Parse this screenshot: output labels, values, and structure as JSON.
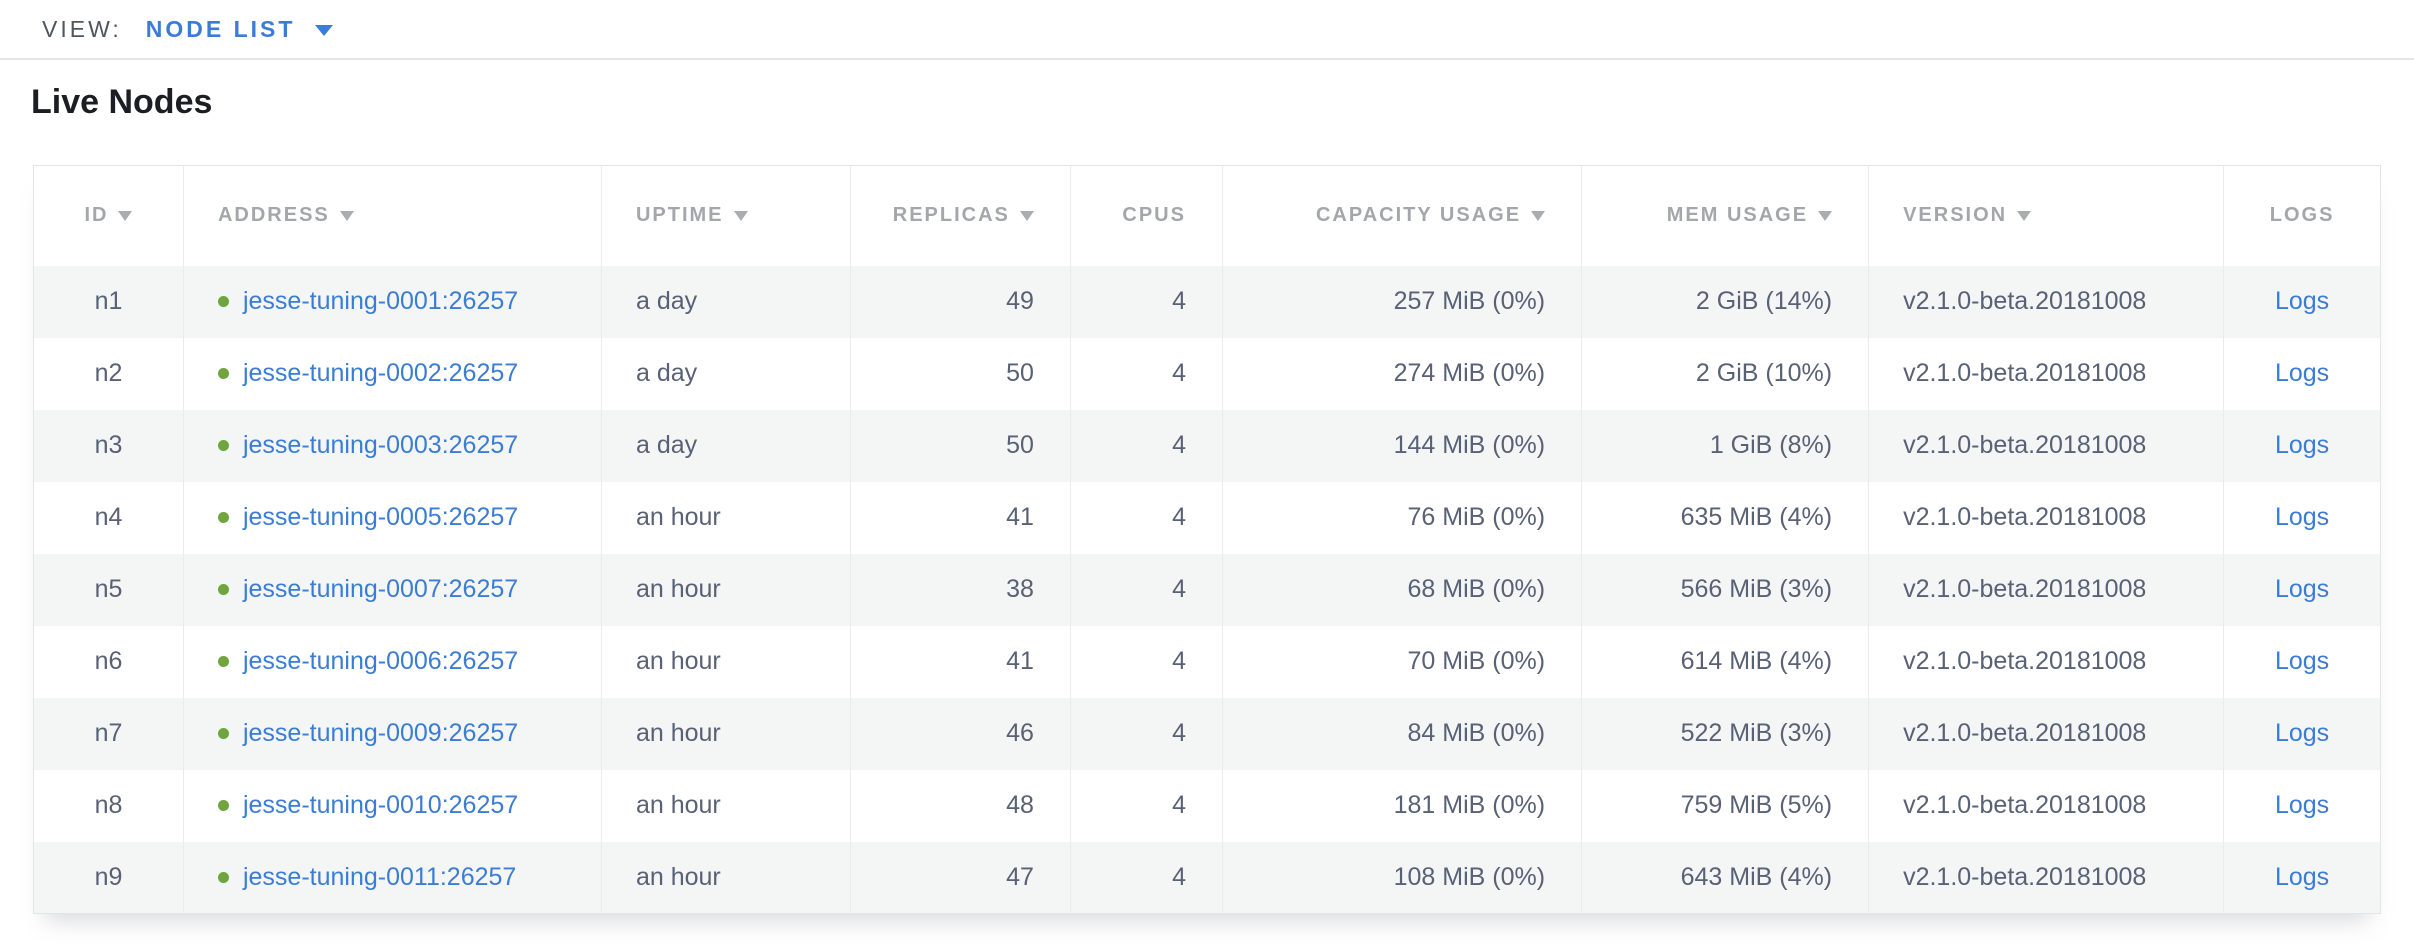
{
  "view_bar": {
    "label": "VIEW:",
    "selected": "NODE LIST"
  },
  "page": {
    "title": "Live Nodes"
  },
  "table": {
    "columns": [
      {
        "key": "id",
        "label": "ID",
        "sortable": true,
        "align": "center"
      },
      {
        "key": "address",
        "label": "ADDRESS",
        "sortable": true,
        "align": "left"
      },
      {
        "key": "uptime",
        "label": "UPTIME",
        "sortable": true,
        "align": "left"
      },
      {
        "key": "replicas",
        "label": "REPLICAS",
        "sortable": true,
        "align": "right"
      },
      {
        "key": "cpus",
        "label": "CPUS",
        "sortable": false,
        "align": "right"
      },
      {
        "key": "capacity",
        "label": "CAPACITY USAGE",
        "sortable": true,
        "align": "right"
      },
      {
        "key": "mem",
        "label": "MEM USAGE",
        "sortable": true,
        "align": "right"
      },
      {
        "key": "version",
        "label": "VERSION",
        "sortable": true,
        "align": "left"
      },
      {
        "key": "logs",
        "label": "LOGS",
        "sortable": false,
        "align": "center"
      }
    ],
    "rows": [
      {
        "id": "n1",
        "status": "live",
        "address": "jesse-tuning-0001:26257",
        "uptime": "a day",
        "replicas": "49",
        "cpus": "4",
        "capacity": "257 MiB (0%)",
        "mem": "2 GiB (14%)",
        "version": "v2.1.0-beta.20181008",
        "logs": "Logs"
      },
      {
        "id": "n2",
        "status": "live",
        "address": "jesse-tuning-0002:26257",
        "uptime": "a day",
        "replicas": "50",
        "cpus": "4",
        "capacity": "274 MiB (0%)",
        "mem": "2 GiB (10%)",
        "version": "v2.1.0-beta.20181008",
        "logs": "Logs"
      },
      {
        "id": "n3",
        "status": "live",
        "address": "jesse-tuning-0003:26257",
        "uptime": "a day",
        "replicas": "50",
        "cpus": "4",
        "capacity": "144 MiB (0%)",
        "mem": "1 GiB (8%)",
        "version": "v2.1.0-beta.20181008",
        "logs": "Logs"
      },
      {
        "id": "n4",
        "status": "live",
        "address": "jesse-tuning-0005:26257",
        "uptime": "an hour",
        "replicas": "41",
        "cpus": "4",
        "capacity": "76 MiB (0%)",
        "mem": "635 MiB (4%)",
        "version": "v2.1.0-beta.20181008",
        "logs": "Logs"
      },
      {
        "id": "n5",
        "status": "live",
        "address": "jesse-tuning-0007:26257",
        "uptime": "an hour",
        "replicas": "38",
        "cpus": "4",
        "capacity": "68 MiB (0%)",
        "mem": "566 MiB (3%)",
        "version": "v2.1.0-beta.20181008",
        "logs": "Logs"
      },
      {
        "id": "n6",
        "status": "live",
        "address": "jesse-tuning-0006:26257",
        "uptime": "an hour",
        "replicas": "41",
        "cpus": "4",
        "capacity": "70 MiB (0%)",
        "mem": "614 MiB (4%)",
        "version": "v2.1.0-beta.20181008",
        "logs": "Logs"
      },
      {
        "id": "n7",
        "status": "live",
        "address": "jesse-tuning-0009:26257",
        "uptime": "an hour",
        "replicas": "46",
        "cpus": "4",
        "capacity": "84 MiB (0%)",
        "mem": "522 MiB (3%)",
        "version": "v2.1.0-beta.20181008",
        "logs": "Logs"
      },
      {
        "id": "n8",
        "status": "live",
        "address": "jesse-tuning-0010:26257",
        "uptime": "an hour",
        "replicas": "48",
        "cpus": "4",
        "capacity": "181 MiB (0%)",
        "mem": "759 MiB (5%)",
        "version": "v2.1.0-beta.20181008",
        "logs": "Logs"
      },
      {
        "id": "n9",
        "status": "live",
        "address": "jesse-tuning-0011:26257",
        "uptime": "an hour",
        "replicas": "47",
        "cpus": "4",
        "capacity": "108 MiB (0%)",
        "mem": "643 MiB (4%)",
        "version": "v2.1.0-beta.20181008",
        "logs": "Logs"
      }
    ]
  },
  "colors": {
    "link_blue": "#3b7cd7",
    "live_dot_green": "#6fa43f",
    "header_gray": "#a3a6aa",
    "body_text": "#586175",
    "row_stripe": "#f4f5f5",
    "border": "#e4e5e6"
  }
}
